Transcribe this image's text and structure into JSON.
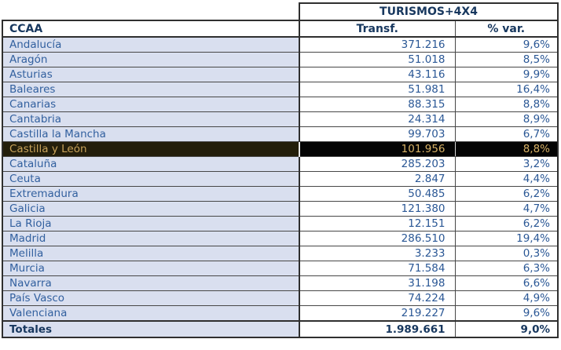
{
  "table": {
    "group_header": "TURISMOS+4X4",
    "columns": {
      "ccaa": "CCAA",
      "transf": "Transf.",
      "var": "% var."
    },
    "rows": [
      {
        "name": "Andalucía",
        "transf": "371.216",
        "var": "9,6%"
      },
      {
        "name": "Aragón",
        "transf": "51.018",
        "var": "8,5%"
      },
      {
        "name": "Asturias",
        "transf": "43.116",
        "var": "9,9%"
      },
      {
        "name": "Baleares",
        "transf": "51.981",
        "var": "16,4%"
      },
      {
        "name": "Canarias",
        "transf": "88.315",
        "var": "8,8%"
      },
      {
        "name": "Cantabria",
        "transf": "24.314",
        "var": "8,9%"
      },
      {
        "name": "Castilla la Mancha",
        "transf": "99.703",
        "var": "6,7%"
      },
      {
        "name": "Castilla y León",
        "transf": "101.956",
        "var": "8,8%",
        "highlighted": true
      },
      {
        "name": "Cataluña",
        "transf": "285.203",
        "var": "3,2%"
      },
      {
        "name": "Ceuta",
        "transf": "2.847",
        "var": "4,4%"
      },
      {
        "name": "Extremadura",
        "transf": "50.485",
        "var": "6,2%"
      },
      {
        "name": "Galicia",
        "transf": "121.380",
        "var": "4,7%"
      },
      {
        "name": "La Rioja",
        "transf": "12.151",
        "var": "6,2%"
      },
      {
        "name": "Madrid",
        "transf": "286.510",
        "var": "19,4%"
      },
      {
        "name": "Melilla",
        "transf": "3.233",
        "var": "0,3%"
      },
      {
        "name": "Murcia",
        "transf": "71.584",
        "var": "6,3%"
      },
      {
        "name": "Navarra",
        "transf": "31.198",
        "var": "6,6%"
      },
      {
        "name": "País Vasco",
        "transf": "74.224",
        "var": "4,9%"
      },
      {
        "name": "Valenciana",
        "transf": "219.227",
        "var": "9,6%"
      }
    ],
    "totals": {
      "label": "Totales",
      "transf": "1.989.661",
      "var": "9,0%"
    }
  },
  "colors": {
    "header_text": "#17375e",
    "region_text": "#32609f",
    "value_text": "#2a5795",
    "region_cell_bg": "#d9dfef",
    "highlight_name_bg": "#231e0b",
    "highlight_value_bg": "#040404",
    "highlight_name_text": "#c9a35a",
    "highlight_value_text": "#d8b266",
    "border_dark": "#2f2f2f",
    "border_thin": "#474747"
  },
  "chart_data": {
    "type": "table",
    "title": "TURISMOS+4X4",
    "columns": [
      "CCAA",
      "Transf.",
      "% var."
    ],
    "rows": [
      [
        "Andalucía",
        371216,
        9.6
      ],
      [
        "Aragón",
        51018,
        8.5
      ],
      [
        "Asturias",
        43116,
        9.9
      ],
      [
        "Baleares",
        51981,
        16.4
      ],
      [
        "Canarias",
        88315,
        8.8
      ],
      [
        "Cantabria",
        24314,
        8.9
      ],
      [
        "Castilla la Mancha",
        99703,
        6.7
      ],
      [
        "Castilla y León",
        101956,
        8.8
      ],
      [
        "Cataluña",
        285203,
        3.2
      ],
      [
        "Ceuta",
        2847,
        4.4
      ],
      [
        "Extremadura",
        50485,
        6.2
      ],
      [
        "Galicia",
        121380,
        4.7
      ],
      [
        "La Rioja",
        12151,
        6.2
      ],
      [
        "Madrid",
        286510,
        19.4
      ],
      [
        "Melilla",
        3233,
        0.3
      ],
      [
        "Murcia",
        71584,
        6.3
      ],
      [
        "Navarra",
        31198,
        6.6
      ],
      [
        "País Vasco",
        74224,
        4.9
      ],
      [
        "Valenciana",
        219227,
        9.6
      ]
    ],
    "totals": [
      "Totales",
      1989661,
      9.0
    ],
    "highlighted_row": "Castilla y León",
    "number_format": "es-ES (dot thousands, comma decimals)"
  }
}
